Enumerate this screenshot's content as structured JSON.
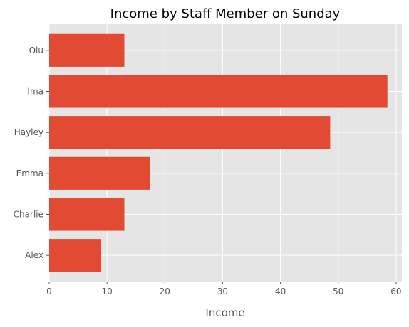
{
  "chart_data": {
    "type": "bar",
    "orientation": "horizontal",
    "title": "Income by Staff Member on Sunday",
    "xlabel": "Income",
    "ylabel": "",
    "categories": [
      "Alex",
      "Charlie",
      "Emma",
      "Hayley",
      "Ima",
      "Olu"
    ],
    "values": [
      9,
      13,
      17.5,
      48.6,
      58.5,
      13
    ],
    "xlim": [
      0,
      61
    ],
    "xticks": [
      0,
      10,
      20,
      30,
      40,
      50,
      60
    ],
    "grid": true,
    "bar_color": "#E24A33",
    "background_color": "#E5E5E5"
  }
}
